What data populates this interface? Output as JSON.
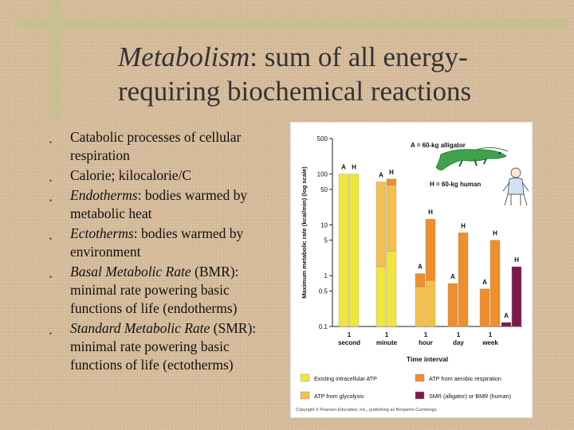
{
  "slide": {
    "title_italic": "Metabolism",
    "title_rest": ": sum of all energy-requiring biochemical reactions",
    "bullets": [
      {
        "italic": "",
        "text": "Catabolic processes of cellular respiration"
      },
      {
        "italic": "",
        "text": "Calorie; kilocalorie/C"
      },
      {
        "italic": "Endotherms",
        "text": ": bodies warmed by metabolic heat"
      },
      {
        "italic": "Ectotherms",
        "text": ": bodies warmed by environment"
      },
      {
        "italic": "Basal Metabolic Rate",
        "text": " (BMR): minimal rate powering basic functions of life (endotherms)"
      },
      {
        "italic": "Standard Metabolic Rate",
        "text": " (SMR): minimal rate powering basic functions of life (ectotherms)"
      }
    ],
    "copyright": "Copyright © Pearson Education, Inc., publishing as Benjamin Cummings."
  },
  "chart_data": {
    "type": "bar",
    "ylabel": "Maximum metabolic rate (kcal/min) (log scale)",
    "xlabel": "Time interval",
    "yscale": "log",
    "ylim": [
      0.1,
      500
    ],
    "yticks": [
      0.1,
      0.5,
      1,
      5,
      10,
      50,
      100,
      500
    ],
    "ytick_labels": [
      "0.1",
      "0.5",
      "1",
      "5",
      "10",
      "50",
      "100",
      "500"
    ],
    "categories": [
      "1 second",
      "1 minute",
      "1 hour",
      "1 day",
      "1 week"
    ],
    "category_labels": [
      [
        "1",
        "second"
      ],
      [
        "1",
        "minute"
      ],
      [
        "1",
        "hour"
      ],
      [
        "1",
        "day"
      ],
      [
        "1",
        "week"
      ]
    ],
    "annotations": {
      "alligator": "A = 60-kg alligator",
      "human": "H = 60-kg human",
      "alligator_letter": "A",
      "human_letter": "H"
    },
    "bars": [
      {
        "category": 0,
        "organism": "A",
        "segments": [
          {
            "source": "atp",
            "top": 100
          }
        ]
      },
      {
        "category": 0,
        "organism": "H",
        "segments": [
          {
            "source": "atp",
            "top": 100
          }
        ]
      },
      {
        "category": 1,
        "organism": "A",
        "segments": [
          {
            "source": "atp",
            "top": 1.5
          },
          {
            "source": "glycolysis",
            "top": 70
          }
        ]
      },
      {
        "category": 1,
        "organism": "H",
        "segments": [
          {
            "source": "atp",
            "top": 3
          },
          {
            "source": "glycolysis",
            "top": 60
          },
          {
            "source": "aerobic",
            "top": 80
          }
        ]
      },
      {
        "category": 2,
        "organism": "A",
        "segments": [
          {
            "source": "glycolysis",
            "top": 0.6
          },
          {
            "source": "aerobic",
            "top": 1.1
          }
        ]
      },
      {
        "category": 2,
        "organism": "H",
        "segments": [
          {
            "source": "glycolysis",
            "top": 0.8
          },
          {
            "source": "aerobic",
            "top": 13
          }
        ]
      },
      {
        "category": 3,
        "organism": "A",
        "segments": [
          {
            "source": "aerobic",
            "top": 0.7
          }
        ]
      },
      {
        "category": 3,
        "organism": "H",
        "segments": [
          {
            "source": "aerobic",
            "top": 7
          }
        ]
      },
      {
        "category": 4,
        "organism": "A",
        "segments": [
          {
            "source": "aerobic",
            "top": 0.55
          }
        ]
      },
      {
        "category": 4,
        "organism": "H",
        "segments": [
          {
            "source": "aerobic",
            "top": 5
          }
        ]
      },
      {
        "category": "SMR/BMR",
        "organism": "A",
        "segments": [
          {
            "source": "smr",
            "top": 0.12
          }
        ]
      },
      {
        "category": "SMR/BMR",
        "organism": "H",
        "segments": [
          {
            "source": "smr",
            "top": 1.5
          }
        ]
      }
    ],
    "legend": [
      {
        "key": "atp",
        "label": "Existing intracellular ATP",
        "color": "#f2e63c"
      },
      {
        "key": "aerobic",
        "label": "ATP from aerobic respiration",
        "color": "#ef8e2a"
      },
      {
        "key": "glycolysis",
        "label": "ATP from glycolysis",
        "color": "#f3c04e"
      },
      {
        "key": "smr",
        "label": "SMR (alligator) or BMR (human)",
        "color": "#7a1a4a"
      }
    ],
    "legend_position": "bottom",
    "grid": false
  }
}
